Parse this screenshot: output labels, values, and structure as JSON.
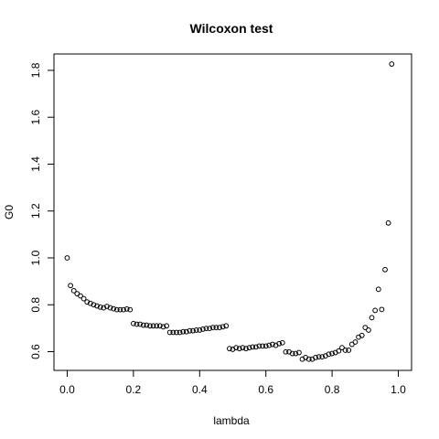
{
  "chart_data": {
    "type": "scatter",
    "title": "Wilcoxon test",
    "xlabel": "lambda",
    "ylabel": "G0",
    "xlim": [
      -0.04,
      1.04
    ],
    "ylim": [
      0.52,
      1.87
    ],
    "x_ticks": [
      0.0,
      0.2,
      0.4,
      0.6,
      0.8,
      1.0
    ],
    "x_tick_labels": [
      "0.0",
      "0.2",
      "0.4",
      "0.6",
      "0.8",
      "1.0"
    ],
    "y_ticks": [
      0.6,
      0.8,
      1.0,
      1.2,
      1.4,
      1.6,
      1.8
    ],
    "y_tick_labels": [
      "0.6",
      "0.8",
      "1.0",
      "1.2",
      "1.4",
      "1.6",
      "1.8"
    ],
    "grid": false,
    "legend": "none",
    "marker": "open-circle",
    "colors": {
      "marker": "#000000",
      "axis": "#000000",
      "background": "#ffffff"
    },
    "points": [
      [
        0.0,
        1.0
      ],
      [
        0.01,
        0.882
      ],
      [
        0.02,
        0.86
      ],
      [
        0.03,
        0.847
      ],
      [
        0.04,
        0.838
      ],
      [
        0.05,
        0.826
      ],
      [
        0.06,
        0.812
      ],
      [
        0.07,
        0.806
      ],
      [
        0.08,
        0.8
      ],
      [
        0.09,
        0.795
      ],
      [
        0.1,
        0.79
      ],
      [
        0.11,
        0.787
      ],
      [
        0.12,
        0.793
      ],
      [
        0.13,
        0.787
      ],
      [
        0.14,
        0.783
      ],
      [
        0.15,
        0.779
      ],
      [
        0.16,
        0.779
      ],
      [
        0.17,
        0.779
      ],
      [
        0.18,
        0.782
      ],
      [
        0.19,
        0.779
      ],
      [
        0.2,
        0.72
      ],
      [
        0.21,
        0.717
      ],
      [
        0.22,
        0.717
      ],
      [
        0.23,
        0.713
      ],
      [
        0.24,
        0.713
      ],
      [
        0.25,
        0.71
      ],
      [
        0.26,
        0.71
      ],
      [
        0.27,
        0.71
      ],
      [
        0.28,
        0.71
      ],
      [
        0.29,
        0.706
      ],
      [
        0.3,
        0.71
      ],
      [
        0.31,
        0.682
      ],
      [
        0.32,
        0.682
      ],
      [
        0.33,
        0.682
      ],
      [
        0.34,
        0.682
      ],
      [
        0.35,
        0.685
      ],
      [
        0.36,
        0.685
      ],
      [
        0.37,
        0.689
      ],
      [
        0.38,
        0.689
      ],
      [
        0.39,
        0.692
      ],
      [
        0.4,
        0.692
      ],
      [
        0.41,
        0.696
      ],
      [
        0.42,
        0.699
      ],
      [
        0.43,
        0.699
      ],
      [
        0.44,
        0.703
      ],
      [
        0.45,
        0.703
      ],
      [
        0.46,
        0.703
      ],
      [
        0.47,
        0.706
      ],
      [
        0.48,
        0.71
      ],
      [
        0.49,
        0.613
      ],
      [
        0.5,
        0.61
      ],
      [
        0.51,
        0.617
      ],
      [
        0.52,
        0.613
      ],
      [
        0.53,
        0.617
      ],
      [
        0.54,
        0.613
      ],
      [
        0.55,
        0.617
      ],
      [
        0.56,
        0.62
      ],
      [
        0.57,
        0.62
      ],
      [
        0.58,
        0.624
      ],
      [
        0.59,
        0.624
      ],
      [
        0.6,
        0.624
      ],
      [
        0.61,
        0.627
      ],
      [
        0.62,
        0.631
      ],
      [
        0.63,
        0.627
      ],
      [
        0.64,
        0.634
      ],
      [
        0.65,
        0.638
      ],
      [
        0.66,
        0.599
      ],
      [
        0.67,
        0.599
      ],
      [
        0.68,
        0.592
      ],
      [
        0.69,
        0.592
      ],
      [
        0.7,
        0.596
      ],
      [
        0.71,
        0.568
      ],
      [
        0.72,
        0.575
      ],
      [
        0.73,
        0.568
      ],
      [
        0.74,
        0.568
      ],
      [
        0.75,
        0.575
      ],
      [
        0.76,
        0.578
      ],
      [
        0.77,
        0.578
      ],
      [
        0.78,
        0.582
      ],
      [
        0.79,
        0.589
      ],
      [
        0.8,
        0.592
      ],
      [
        0.81,
        0.596
      ],
      [
        0.82,
        0.603
      ],
      [
        0.83,
        0.617
      ],
      [
        0.84,
        0.606
      ],
      [
        0.85,
        0.606
      ],
      [
        0.86,
        0.631
      ],
      [
        0.87,
        0.641
      ],
      [
        0.88,
        0.662
      ],
      [
        0.89,
        0.669
      ],
      [
        0.9,
        0.703
      ],
      [
        0.91,
        0.692
      ],
      [
        0.92,
        0.745
      ],
      [
        0.93,
        0.776
      ],
      [
        0.94,
        0.866
      ],
      [
        0.95,
        0.78
      ],
      [
        0.96,
        0.95
      ],
      [
        0.97,
        1.149
      ],
      [
        0.98,
        1.827
      ]
    ]
  }
}
